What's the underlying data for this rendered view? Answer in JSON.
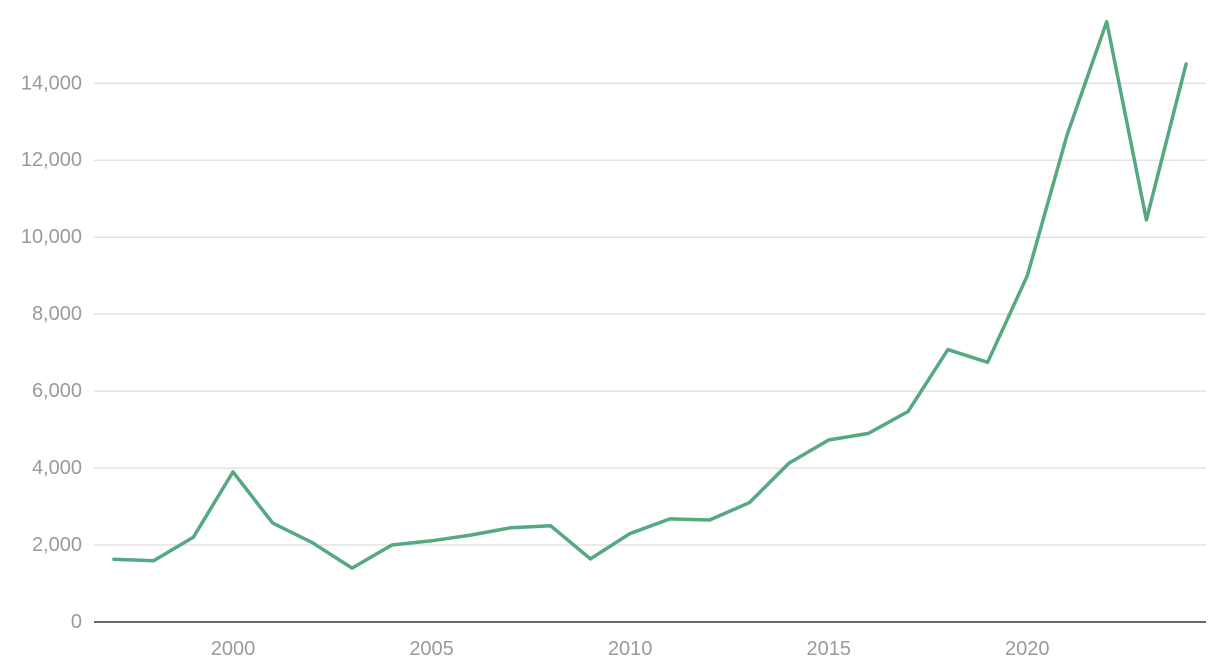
{
  "chart_data": {
    "type": "line",
    "title": "",
    "xlabel": "",
    "ylabel": "",
    "xlim": [
      1996.5,
      2024.5
    ],
    "ylim": [
      0,
      15800
    ],
    "grid": true,
    "legend": "none",
    "x_ticks": [
      {
        "value": 2000,
        "label": "2000"
      },
      {
        "value": 2005,
        "label": "2005"
      },
      {
        "value": 2010,
        "label": "2010"
      },
      {
        "value": 2015,
        "label": "2015"
      },
      {
        "value": 2020,
        "label": "2020"
      }
    ],
    "y_ticks": [
      {
        "value": 0,
        "label": "0"
      },
      {
        "value": 2000,
        "label": "2,000"
      },
      {
        "value": 4000,
        "label": "4,000"
      },
      {
        "value": 6000,
        "label": "6,000"
      },
      {
        "value": 8000,
        "label": "8,000"
      },
      {
        "value": 10000,
        "label": "10,000"
      },
      {
        "value": 12000,
        "label": "12,000"
      },
      {
        "value": 14000,
        "label": "14,000"
      }
    ],
    "series": [
      {
        "color": "#55a87f",
        "x": [
          1997,
          1998,
          1999,
          2000,
          2001,
          2002,
          2003,
          2004,
          2005,
          2006,
          2007,
          2008,
          2009,
          2010,
          2011,
          2012,
          2013,
          2014,
          2015,
          2016,
          2017,
          2018,
          2019,
          2020,
          2021,
          2022,
          2023,
          2024
        ],
        "values": [
          1630,
          1590,
          2200,
          3900,
          2570,
          2060,
          1400,
          2000,
          2110,
          2260,
          2450,
          2500,
          1640,
          2300,
          2680,
          2650,
          3100,
          4130,
          4730,
          4900,
          5470,
          7080,
          6750,
          9000,
          12650,
          15600,
          10450,
          14500
        ]
      }
    ]
  }
}
